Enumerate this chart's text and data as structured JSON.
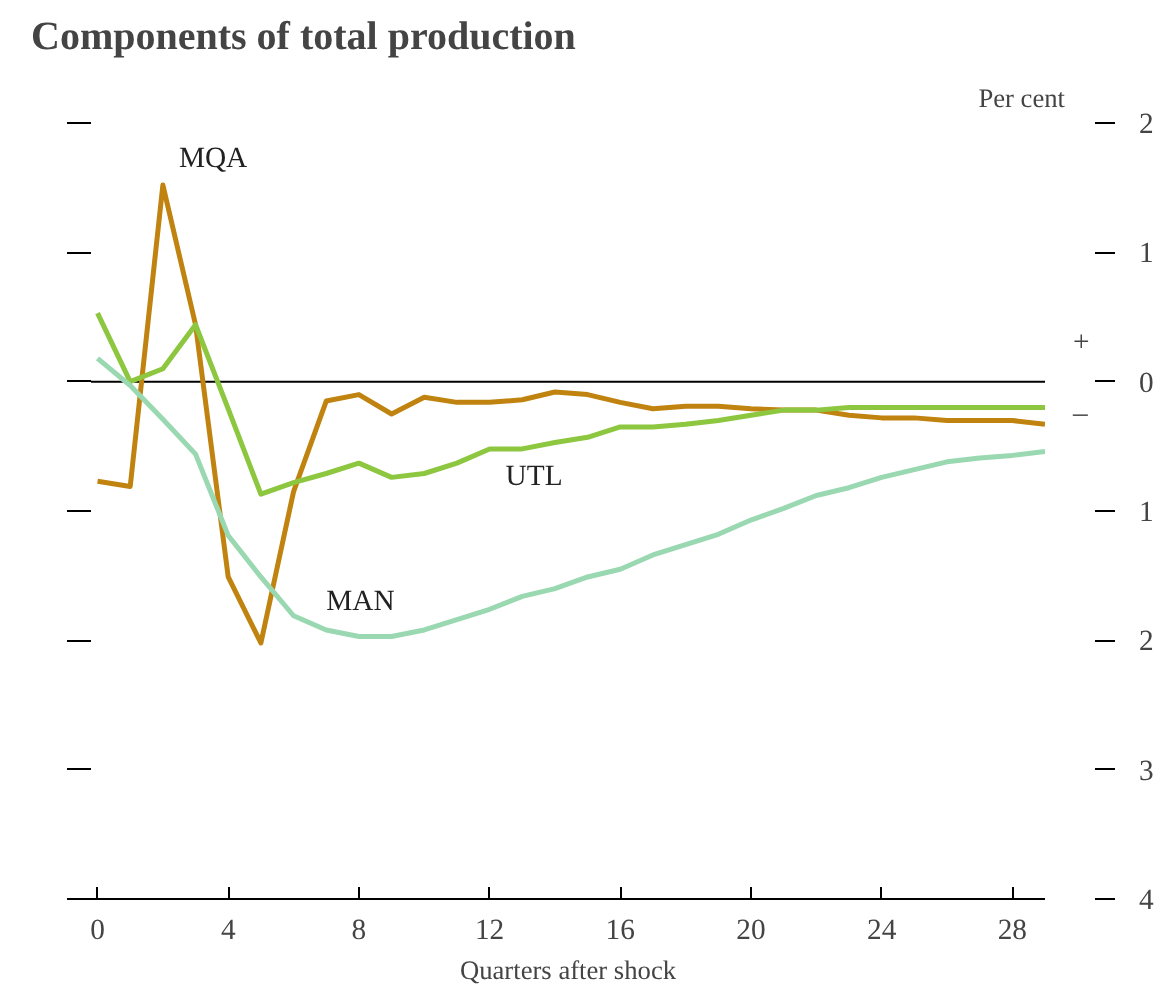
{
  "chart_data": {
    "type": "line",
    "title": "Components of total production",
    "ylabel": "Per cent",
    "xlabel": "Quarters after shock",
    "x": [
      0,
      1,
      2,
      3,
      4,
      5,
      6,
      7,
      8,
      9,
      10,
      11,
      12,
      13,
      14,
      15,
      16,
      17,
      18,
      19,
      20,
      21,
      22,
      23,
      24,
      25,
      26,
      27,
      28,
      29
    ],
    "series": [
      {
        "name": "MQA",
        "color": "#c0830f",
        "values": [
          -0.77,
          -0.81,
          1.52,
          0.44,
          -1.51,
          -2.02,
          -0.85,
          -0.15,
          -0.1,
          -0.25,
          -0.12,
          -0.16,
          -0.16,
          -0.14,
          -0.08,
          -0.1,
          -0.16,
          -0.21,
          -0.19,
          -0.19,
          -0.21,
          -0.22,
          -0.22,
          -0.26,
          -0.28,
          -0.28,
          -0.3,
          -0.3,
          -0.3,
          -0.33
        ]
      },
      {
        "name": "UTL",
        "color": "#8dc63f",
        "values": [
          0.53,
          0.0,
          0.1,
          0.44,
          -0.21,
          -0.87,
          -0.78,
          -0.71,
          -0.63,
          -0.74,
          -0.71,
          -0.63,
          -0.52,
          -0.52,
          -0.47,
          -0.43,
          -0.35,
          -0.35,
          -0.33,
          -0.3,
          -0.26,
          -0.22,
          -0.22,
          -0.2,
          -0.2,
          -0.2,
          -0.2,
          -0.2,
          -0.2,
          -0.2
        ]
      },
      {
        "name": "MAN",
        "color": "#99d8b0",
        "values": [
          0.18,
          -0.03,
          -0.29,
          -0.56,
          -1.19,
          -1.51,
          -1.81,
          -1.92,
          -1.97,
          -1.97,
          -1.92,
          -1.84,
          -1.76,
          -1.66,
          -1.6,
          -1.51,
          -1.45,
          -1.34,
          -1.26,
          -1.18,
          -1.07,
          -0.98,
          -0.88,
          -0.82,
          -0.74,
          -0.68,
          -0.62,
          -0.59,
          -0.57,
          -0.54
        ]
      }
    ],
    "xlim": [
      -0.2,
      29
    ],
    "xticks": [
      0,
      4,
      8,
      12,
      16,
      20,
      24,
      28
    ],
    "ylim": [
      -4,
      2
    ],
    "yticks": [
      {
        "value": -4,
        "label": "4"
      },
      {
        "value": -3,
        "label": "3"
      },
      {
        "value": -2,
        "label": "2"
      },
      {
        "value": -1,
        "label": "1"
      },
      0,
      1,
      2
    ],
    "ref_lines": [
      {
        "axis": "y",
        "value": 0,
        "color": "#000000"
      }
    ],
    "annotations": [
      "+",
      "–"
    ],
    "grid": false,
    "legend": false,
    "marker": "none",
    "line_style": "solid"
  }
}
